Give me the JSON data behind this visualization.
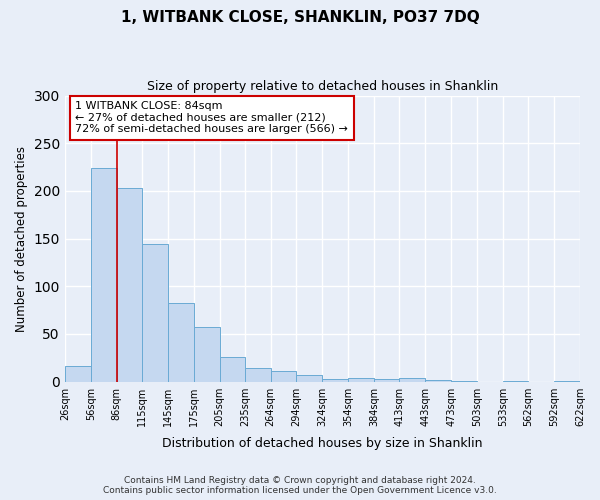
{
  "title": "1, WITBANK CLOSE, SHANKLIN, PO37 7DQ",
  "subtitle": "Size of property relative to detached houses in Shanklin",
  "xlabel": "Distribution of detached houses by size in Shanklin",
  "ylabel": "Number of detached properties",
  "bar_values": [
    16,
    224,
    203,
    144,
    82,
    57,
    26,
    14,
    11,
    7,
    3,
    4,
    3,
    4,
    2,
    1,
    0,
    1,
    0,
    1
  ],
  "bin_edges": [
    26,
    56,
    86,
    115,
    145,
    175,
    205,
    235,
    264,
    294,
    324,
    354,
    384,
    413,
    443,
    473,
    503,
    533,
    562,
    592,
    622
  ],
  "bin_labels": [
    "26sqm",
    "56sqm",
    "86sqm",
    "115sqm",
    "145sqm",
    "175sqm",
    "205sqm",
    "235sqm",
    "264sqm",
    "294sqm",
    "324sqm",
    "354sqm",
    "384sqm",
    "413sqm",
    "443sqm",
    "473sqm",
    "503sqm",
    "533sqm",
    "562sqm",
    "592sqm",
    "622sqm"
  ],
  "bar_color": "#c5d8f0",
  "bar_edgecolor": "#6aaad4",
  "ylim": [
    0,
    300
  ],
  "yticks": [
    0,
    50,
    100,
    150,
    200,
    250,
    300
  ],
  "property_line_x": 86,
  "property_line_color": "#cc0000",
  "annotation_title": "1 WITBANK CLOSE: 84sqm",
  "annotation_line1": "← 27% of detached houses are smaller (212)",
  "annotation_line2": "72% of semi-detached houses are larger (566) →",
  "annotation_box_facecolor": "#ffffff",
  "annotation_box_edgecolor": "#cc0000",
  "footer1": "Contains HM Land Registry data © Crown copyright and database right 2024.",
  "footer2": "Contains public sector information licensed under the Open Government Licence v3.0.",
  "background_color": "#e8eef8",
  "plot_background": "#e8eef8",
  "grid_color": "#ffffff",
  "title_fontsize": 11,
  "subtitle_fontsize": 9
}
